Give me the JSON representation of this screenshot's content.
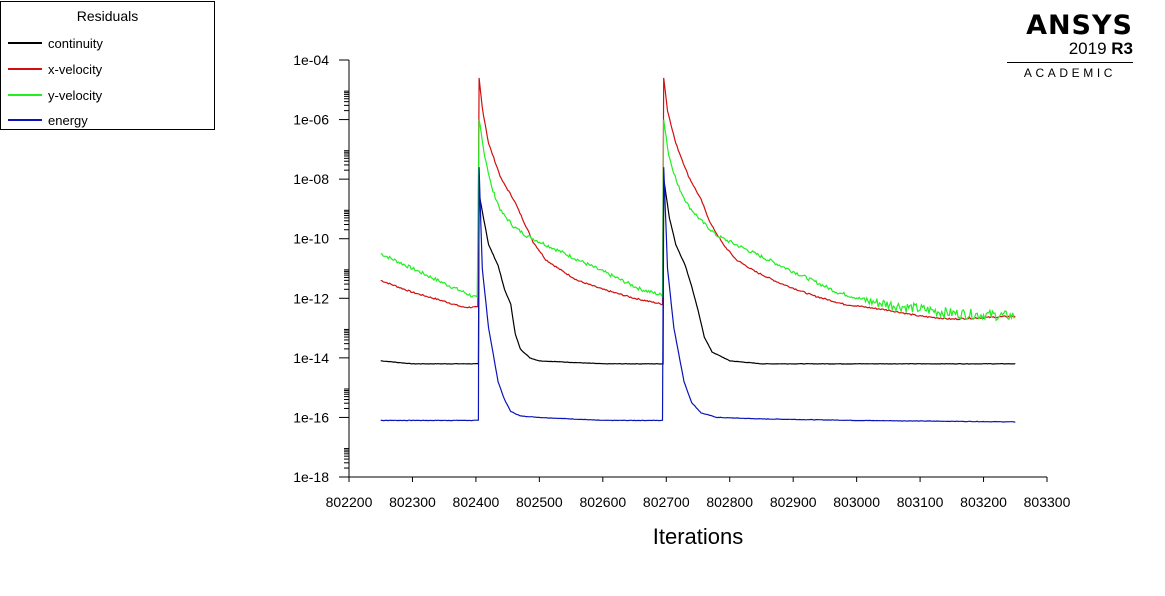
{
  "legend": {
    "title": "Residuals",
    "items": [
      {
        "label": "continuity",
        "color": "#000000"
      },
      {
        "label": "x-velocity",
        "color": "#d01010"
      },
      {
        "label": "y-velocity",
        "color": "#22ee22"
      },
      {
        "label": "energy",
        "color": "#0a14b8"
      }
    ]
  },
  "logo": {
    "brand": "ANSYS",
    "version_year": "2019",
    "version_release": "R3",
    "edition": "ACADEMIC"
  },
  "chart_data": {
    "type": "line",
    "title": "",
    "xlabel": "Iterations",
    "ylabel": "",
    "xlim": [
      802200,
      803300
    ],
    "ylim_log10": [
      -18,
      -4
    ],
    "y_scale": "log",
    "x_ticks": [
      802200,
      802300,
      802400,
      802500,
      802600,
      802700,
      802800,
      802900,
      803000,
      803100,
      803200,
      803300
    ],
    "x_tick_labels": [
      "802200",
      "802300",
      "802400",
      "802500",
      "802600",
      "802700",
      "802800",
      "802900",
      "803000",
      "803100",
      "803200",
      "803300"
    ],
    "y_ticks_log10": [
      -4,
      -6,
      -8,
      -10,
      -12,
      -14,
      -16,
      -18
    ],
    "y_tick_labels": [
      "1e-04",
      "1e-06",
      "1e-08",
      "1e-10",
      "1e-12",
      "1e-14",
      "1e-16",
      "1e-18"
    ],
    "legend_position": "top-left, outside plot",
    "grid": false,
    "series": [
      {
        "name": "continuity",
        "color": "#000000",
        "points_log10": [
          [
            802250,
            -14.1
          ],
          [
            802300,
            -14.2
          ],
          [
            802404,
            -14.2
          ],
          [
            802405,
            -8.5
          ],
          [
            802412,
            -9.3
          ],
          [
            802420,
            -10.2
          ],
          [
            802435,
            -10.9
          ],
          [
            802445,
            -11.7
          ],
          [
            802455,
            -12.2
          ],
          [
            802462,
            -13.2
          ],
          [
            802470,
            -13.7
          ],
          [
            802485,
            -14.0
          ],
          [
            802500,
            -14.1
          ],
          [
            802550,
            -14.15
          ],
          [
            802600,
            -14.2
          ],
          [
            802695,
            -14.2
          ],
          [
            802696,
            -8.0
          ],
          [
            802705,
            -9.3
          ],
          [
            802715,
            -10.2
          ],
          [
            802730,
            -10.9
          ],
          [
            802740,
            -11.6
          ],
          [
            802750,
            -12.4
          ],
          [
            802760,
            -13.3
          ],
          [
            802772,
            -13.8
          ],
          [
            802800,
            -14.1
          ],
          [
            802850,
            -14.2
          ],
          [
            802900,
            -14.2
          ],
          [
            803000,
            -14.2
          ],
          [
            803100,
            -14.2
          ],
          [
            803250,
            -14.2
          ]
        ]
      },
      {
        "name": "x-velocity",
        "color": "#d01010",
        "points_log10": [
          [
            802250,
            -11.4
          ],
          [
            802300,
            -11.8
          ],
          [
            802350,
            -12.1
          ],
          [
            802380,
            -12.3
          ],
          [
            802403,
            -12.3
          ],
          [
            802405,
            -4.6
          ],
          [
            802410,
            -5.6
          ],
          [
            802420,
            -6.8
          ],
          [
            802440,
            -8.0
          ],
          [
            802460,
            -8.7
          ],
          [
            802475,
            -9.4
          ],
          [
            802490,
            -10.1
          ],
          [
            802510,
            -10.7
          ],
          [
            802530,
            -11.0
          ],
          [
            802560,
            -11.4
          ],
          [
            802600,
            -11.7
          ],
          [
            802650,
            -12.0
          ],
          [
            802694,
            -12.2
          ],
          [
            802696,
            -4.6
          ],
          [
            802702,
            -5.7
          ],
          [
            802715,
            -6.8
          ],
          [
            802735,
            -7.9
          ],
          [
            802755,
            -8.7
          ],
          [
            802770,
            -9.5
          ],
          [
            802790,
            -10.2
          ],
          [
            802810,
            -10.7
          ],
          [
            802840,
            -11.1
          ],
          [
            802880,
            -11.5
          ],
          [
            802930,
            -11.9
          ],
          [
            802980,
            -12.2
          ],
          [
            803050,
            -12.4
          ],
          [
            803100,
            -12.6
          ],
          [
            803150,
            -12.7
          ],
          [
            803250,
            -12.6
          ]
        ]
      },
      {
        "name": "y-velocity",
        "color": "#22ee22",
        "points_log10": [
          [
            802250,
            -10.5
          ],
          [
            802300,
            -11.0
          ],
          [
            802350,
            -11.5
          ],
          [
            802402,
            -12.0
          ],
          [
            802405,
            -6.0
          ],
          [
            802412,
            -7.0
          ],
          [
            802425,
            -8.3
          ],
          [
            802440,
            -9.1
          ],
          [
            802460,
            -9.6
          ],
          [
            802480,
            -9.9
          ],
          [
            802520,
            -10.3
          ],
          [
            802560,
            -10.7
          ],
          [
            802620,
            -11.3
          ],
          [
            802660,
            -11.7
          ],
          [
            802694,
            -11.9
          ],
          [
            802696,
            -6.0
          ],
          [
            802704,
            -7.2
          ],
          [
            802718,
            -8.2
          ],
          [
            802735,
            -8.9
          ],
          [
            802755,
            -9.4
          ],
          [
            802780,
            -9.9
          ],
          [
            802820,
            -10.3
          ],
          [
            802870,
            -10.8
          ],
          [
            802920,
            -11.3
          ],
          [
            802970,
            -11.8
          ],
          [
            803020,
            -12.1
          ],
          [
            803080,
            -12.3
          ],
          [
            803150,
            -12.5
          ],
          [
            803250,
            -12.6
          ]
        ]
      },
      {
        "name": "energy",
        "color": "#0a14b8",
        "points_log10": [
          [
            802250,
            -16.1
          ],
          [
            802300,
            -16.1
          ],
          [
            802404,
            -16.1
          ],
          [
            802405,
            -7.6
          ],
          [
            802410,
            -11.0
          ],
          [
            802420,
            -13.0
          ],
          [
            802435,
            -14.8
          ],
          [
            802445,
            -15.4
          ],
          [
            802455,
            -15.8
          ],
          [
            802470,
            -15.95
          ],
          [
            802500,
            -16.0
          ],
          [
            802600,
            -16.1
          ],
          [
            802694,
            -16.1
          ],
          [
            802696,
            -7.6
          ],
          [
            802702,
            -11.0
          ],
          [
            802712,
            -13.0
          ],
          [
            802728,
            -14.8
          ],
          [
            802740,
            -15.5
          ],
          [
            802755,
            -15.85
          ],
          [
            802780,
            -16.0
          ],
          [
            802850,
            -16.05
          ],
          [
            803000,
            -16.1
          ],
          [
            803100,
            -16.12
          ],
          [
            803250,
            -16.15
          ]
        ]
      }
    ]
  }
}
